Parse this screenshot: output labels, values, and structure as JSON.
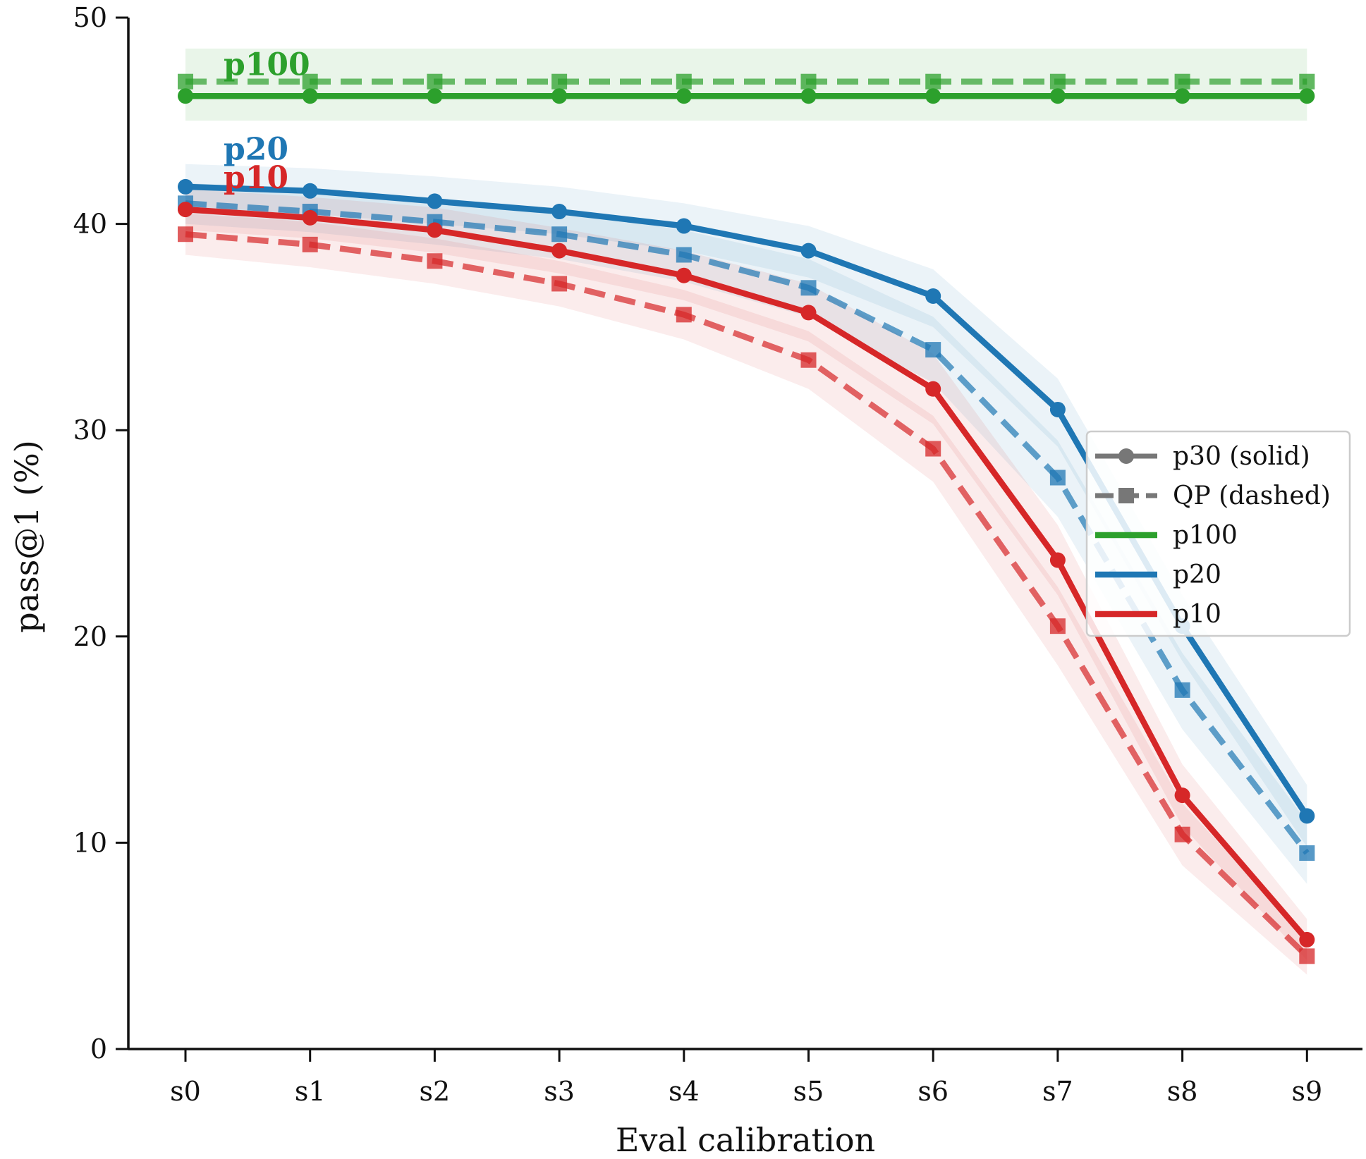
{
  "chart_data": {
    "type": "line",
    "xlabel": "Eval calibration",
    "ylabel": "pass@1 (%)",
    "categories": [
      "s0",
      "s1",
      "s2",
      "s3",
      "s4",
      "s5",
      "s6",
      "s7",
      "s8",
      "s9"
    ],
    "ylim": [
      0,
      50
    ],
    "yticks": [
      0,
      10,
      20,
      30,
      40,
      50
    ],
    "grid": false,
    "legend_position": "center-right",
    "legend": [
      {
        "label": "p30 (solid)",
        "style": "solid-marker",
        "color": "#777777"
      },
      {
        "label": "QP (dashed)",
        "style": "dashed-marker",
        "color": "#777777"
      },
      {
        "label": "p100",
        "style": "line",
        "color": "#2ca02c"
      },
      {
        "label": "p20",
        "style": "line",
        "color": "#1f77b4"
      },
      {
        "label": "p10",
        "style": "line",
        "color": "#d62728"
      }
    ],
    "annotations": [
      {
        "text": "p100",
        "color": "#2ca02c",
        "x": "s0",
        "y": 47.7
      },
      {
        "text": "p20",
        "color": "#1f77b4",
        "x": "s0",
        "y": 43.6
      },
      {
        "text": "p10",
        "color": "#d62728",
        "x": "s0",
        "y": 42.2
      }
    ],
    "series": [
      {
        "group": "p100",
        "method": "p30 (solid)",
        "color": "#2ca02c",
        "values": [
          46.2,
          46.2,
          46.2,
          46.2,
          46.2,
          46.2,
          46.2,
          46.2,
          46.2,
          46.2
        ],
        "band_low": [
          45.0,
          45.0,
          45.0,
          45.0,
          45.0,
          45.0,
          45.0,
          45.0,
          45.0,
          45.0
        ],
        "band_high": [
          48.5,
          48.5,
          48.5,
          48.5,
          48.5,
          48.5,
          48.5,
          48.5,
          48.5,
          48.5
        ]
      },
      {
        "group": "p100",
        "method": "QP (dashed)",
        "color": "#2ca02c",
        "values": [
          46.9,
          46.9,
          46.9,
          46.9,
          46.9,
          46.9,
          46.9,
          46.9,
          46.9,
          46.9
        ],
        "band_low": [
          45.0,
          45.0,
          45.0,
          45.0,
          45.0,
          45.0,
          45.0,
          45.0,
          45.0,
          45.0
        ],
        "band_high": [
          48.5,
          48.5,
          48.5,
          48.5,
          48.5,
          48.5,
          48.5,
          48.5,
          48.5,
          48.5
        ]
      },
      {
        "group": "p20",
        "method": "p30 (solid)",
        "color": "#1f77b4",
        "values": [
          41.8,
          41.6,
          41.1,
          40.6,
          39.9,
          38.7,
          36.5,
          31.0,
          20.5,
          11.3
        ],
        "band_low": [
          40.7,
          40.5,
          40.0,
          39.5,
          38.7,
          37.4,
          35.0,
          29.2,
          18.8,
          9.8
        ],
        "band_high": [
          42.9,
          42.7,
          42.3,
          41.8,
          41.0,
          39.9,
          37.8,
          32.5,
          22.0,
          12.8
        ]
      },
      {
        "group": "p20",
        "method": "QP (dashed)",
        "color": "#1f77b4",
        "values": [
          41.0,
          40.6,
          40.1,
          39.5,
          38.5,
          36.9,
          33.9,
          27.7,
          17.4,
          9.5
        ],
        "band_low": [
          40.0,
          39.6,
          39.0,
          38.3,
          37.2,
          35.5,
          32.3,
          25.8,
          15.5,
          8.0
        ],
        "band_high": [
          42.0,
          41.6,
          41.2,
          40.6,
          39.7,
          38.3,
          35.5,
          29.5,
          19.2,
          11.0
        ]
      },
      {
        "group": "p10",
        "method": "p30 (solid)",
        "color": "#d62728",
        "values": [
          40.7,
          40.3,
          39.7,
          38.7,
          37.5,
          35.7,
          32.0,
          23.7,
          12.3,
          5.3
        ],
        "band_low": [
          39.7,
          39.3,
          38.6,
          37.6,
          36.3,
          34.3,
          30.3,
          22.0,
          10.8,
          4.3
        ],
        "band_high": [
          41.7,
          41.3,
          40.8,
          39.8,
          38.7,
          37.1,
          33.7,
          25.4,
          13.8,
          6.3
        ]
      },
      {
        "group": "p10",
        "method": "QP (dashed)",
        "color": "#d62728",
        "values": [
          39.5,
          39.0,
          38.2,
          37.1,
          35.6,
          33.4,
          29.1,
          20.5,
          10.4,
          4.5
        ],
        "band_low": [
          38.5,
          37.9,
          37.1,
          36.0,
          34.4,
          32.0,
          27.5,
          18.6,
          8.9,
          3.6
        ],
        "band_high": [
          40.5,
          40.1,
          39.3,
          38.2,
          36.8,
          34.8,
          30.7,
          22.4,
          11.9,
          5.4
        ]
      }
    ]
  }
}
